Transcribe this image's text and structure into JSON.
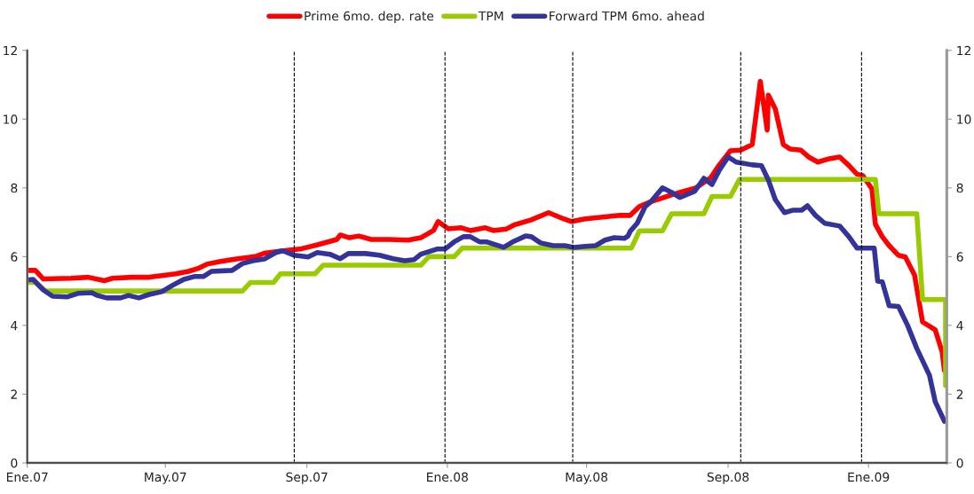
{
  "chart_data": {
    "type": "line",
    "legend": "top",
    "grid": false,
    "line_style": "solid",
    "marker": "none",
    "xlim": [
      "2007-01-01",
      "2009-03-10"
    ],
    "xticks": [
      {
        "value": "2007-01",
        "label": "Ene.07"
      },
      {
        "value": "2007-05",
        "label": "May.07"
      },
      {
        "value": "2007-09",
        "label": "Sep.07"
      },
      {
        "value": "2008-01",
        "label": "Ene.08"
      },
      {
        "value": "2008-05",
        "label": "May.08"
      },
      {
        "value": "2008-09",
        "label": "Sep.08"
      },
      {
        "value": "2009-01",
        "label": "Ene.09"
      }
    ],
    "ylim": [
      0,
      12
    ],
    "yticks": [
      0,
      2,
      4,
      6,
      8,
      10,
      12
    ],
    "y2lim": [
      0,
      12
    ],
    "y2ticks": [
      0,
      2,
      4,
      6,
      8,
      10,
      12
    ],
    "ref_lines": [
      {
        "axis": "x",
        "value": "2007-08-21",
        "color": "#000000",
        "line_style": "dashed"
      },
      {
        "axis": "x",
        "value": "2007-12-30",
        "color": "#000000",
        "line_style": "dashed"
      },
      {
        "axis": "x",
        "value": "2008-04-19",
        "color": "#000000",
        "line_style": "dashed"
      },
      {
        "axis": "x",
        "value": "2008-09-12",
        "color": "#000000",
        "line_style": "dashed"
      },
      {
        "axis": "x",
        "value": "2008-12-26",
        "color": "#000000",
        "line_style": "dashed"
      }
    ],
    "series": [
      {
        "name": "Prime 6mo. dep. rate",
        "color": "#ff0000",
        "x": [
          "2007-01-01",
          "2007-01-08",
          "2007-01-15",
          "2007-02-08",
          "2007-02-23",
          "2007-03-09",
          "2007-03-16",
          "2007-04-02",
          "2007-04-17",
          "2007-04-28",
          "2007-05-10",
          "2007-05-21",
          "2007-05-29",
          "2007-06-06",
          "2007-06-18",
          "2007-07-03",
          "2007-07-18",
          "2007-07-26",
          "2007-08-11",
          "2007-08-26",
          "2007-09-11",
          "2007-09-27",
          "2007-09-30",
          "2007-10-08",
          "2007-10-16",
          "2007-10-27",
          "2007-11-12",
          "2007-11-28",
          "2007-12-09",
          "2007-12-20",
          "2007-12-24",
          "2008-01-02",
          "2008-01-13",
          "2008-01-21",
          "2008-02-03",
          "2008-02-10",
          "2008-02-21",
          "2008-02-28",
          "2008-03-14",
          "2008-03-29",
          "2008-04-11",
          "2008-04-18",
          "2008-04-30",
          "2008-05-15",
          "2008-05-30",
          "2008-06-08",
          "2008-06-16",
          "2008-06-26",
          "2008-07-09",
          "2008-07-21",
          "2008-08-04",
          "2008-08-17",
          "2008-08-24",
          "2008-09-03",
          "2008-09-12",
          "2008-09-22",
          "2008-09-29",
          "2008-10-05",
          "2008-10-06",
          "2008-10-12",
          "2008-10-19",
          "2008-10-25",
          "2008-11-03",
          "2008-11-10",
          "2008-11-18",
          "2008-11-28",
          "2008-12-07",
          "2008-12-15",
          "2008-12-22",
          "2008-12-27",
          "2009-01-04",
          "2009-01-07",
          "2009-01-13",
          "2009-01-19",
          "2009-01-27",
          "2009-02-02",
          "2009-02-10",
          "2009-02-17",
          "2009-02-28",
          "2009-03-06",
          "2009-03-08"
        ],
        "values": [
          5.6,
          5.6,
          5.35,
          5.37,
          5.4,
          5.3,
          5.37,
          5.4,
          5.4,
          5.45,
          5.5,
          5.57,
          5.65,
          5.78,
          5.86,
          5.94,
          6.0,
          6.1,
          6.17,
          6.22,
          6.35,
          6.5,
          6.63,
          6.55,
          6.6,
          6.5,
          6.5,
          6.48,
          6.55,
          6.76,
          7.02,
          6.81,
          6.84,
          6.76,
          6.84,
          6.76,
          6.8,
          6.92,
          7.07,
          7.28,
          7.1,
          7.02,
          7.1,
          7.15,
          7.2,
          7.2,
          7.46,
          7.6,
          7.74,
          7.87,
          8.0,
          8.3,
          8.65,
          9.08,
          9.1,
          9.26,
          11.1,
          9.68,
          10.7,
          10.3,
          9.26,
          9.13,
          9.1,
          8.9,
          8.75,
          8.85,
          8.9,
          8.65,
          8.4,
          8.36,
          7.97,
          6.94,
          6.58,
          6.32,
          6.04,
          5.99,
          5.47,
          4.1,
          3.87,
          3.23,
          2.68
        ]
      },
      {
        "name": "TPM",
        "color": "#99cc00",
        "x": [
          "2007-01-01",
          "2007-01-08",
          "2007-01-17",
          "2007-07-07",
          "2007-07-14",
          "2007-08-03",
          "2007-08-09",
          "2007-09-08",
          "2007-09-15",
          "2007-12-09",
          "2007-12-16",
          "2008-01-07",
          "2008-01-14",
          "2008-06-09",
          "2008-06-16",
          "2008-07-06",
          "2008-07-14",
          "2008-08-11",
          "2008-08-18",
          "2008-09-03",
          "2008-09-11",
          "2009-01-07",
          "2009-01-10",
          "2009-02-12",
          "2009-02-17",
          "2009-03-09",
          "2009-03-09"
        ],
        "values": [
          5.25,
          5.25,
          5.0,
          5.0,
          5.25,
          5.25,
          5.5,
          5.5,
          5.75,
          5.75,
          6.0,
          6.0,
          6.25,
          6.25,
          6.75,
          6.75,
          7.25,
          7.25,
          7.75,
          7.75,
          8.25,
          8.25,
          7.25,
          7.25,
          4.75,
          4.75,
          2.25
        ]
      },
      {
        "name": "Forward TPM 6mo. ahead",
        "color": "#333399",
        "x": [
          "2007-01-01",
          "2007-01-06",
          "2007-01-15",
          "2007-01-23",
          "2007-02-05",
          "2007-02-14",
          "2007-02-26",
          "2007-03-03",
          "2007-03-11",
          "2007-03-23",
          "2007-03-30",
          "2007-04-08",
          "2007-04-17",
          "2007-04-28",
          "2007-05-07",
          "2007-05-17",
          "2007-05-26",
          "2007-06-03",
          "2007-06-10",
          "2007-06-28",
          "2007-07-07",
          "2007-07-16",
          "2007-07-26",
          "2007-08-05",
          "2007-08-11",
          "2007-08-21",
          "2007-09-02",
          "2007-09-10",
          "2007-09-21",
          "2007-09-30",
          "2007-10-07",
          "2007-10-22",
          "2007-11-03",
          "2007-11-15",
          "2007-11-25",
          "2007-12-03",
          "2007-12-09",
          "2007-12-23",
          "2007-12-30",
          "2008-01-07",
          "2008-01-15",
          "2008-01-21",
          "2008-01-29",
          "2008-02-04",
          "2008-02-19",
          "2008-02-28",
          "2008-03-09",
          "2008-03-14",
          "2008-03-22",
          "2008-04-02",
          "2008-04-12",
          "2008-04-20",
          "2008-04-30",
          "2008-05-09",
          "2008-05-17",
          "2008-05-25",
          "2008-06-03",
          "2008-06-06",
          "2008-06-08",
          "2008-06-14",
          "2008-06-21",
          "2008-06-26",
          "2008-07-06",
          "2008-07-14",
          "2008-07-21",
          "2008-08-03",
          "2008-08-11",
          "2008-08-18",
          "2008-08-24",
          "2008-09-01",
          "2008-09-08",
          "2008-09-22",
          "2008-09-30",
          "2008-10-06",
          "2008-10-12",
          "2008-10-20",
          "2008-10-27",
          "2008-11-04",
          "2008-11-09",
          "2008-11-16",
          "2008-11-24",
          "2008-12-07",
          "2008-12-15",
          "2008-12-22",
          "2009-01-06",
          "2009-01-09",
          "2009-01-13",
          "2009-01-19",
          "2009-01-27",
          "2009-02-04",
          "2009-02-12",
          "2009-02-23",
          "2009-02-28",
          "2009-03-08"
        ],
        "values": [
          5.32,
          5.34,
          5.03,
          4.85,
          4.83,
          4.93,
          4.95,
          4.87,
          4.8,
          4.8,
          4.87,
          4.8,
          4.9,
          4.98,
          5.16,
          5.34,
          5.42,
          5.42,
          5.57,
          5.6,
          5.8,
          5.88,
          5.93,
          6.12,
          6.17,
          6.04,
          5.99,
          6.12,
          6.07,
          5.94,
          6.09,
          6.09,
          6.04,
          5.94,
          5.88,
          5.91,
          6.07,
          6.22,
          6.22,
          6.43,
          6.58,
          6.58,
          6.43,
          6.43,
          6.27,
          6.45,
          6.6,
          6.58,
          6.4,
          6.32,
          6.32,
          6.27,
          6.3,
          6.32,
          6.48,
          6.55,
          6.53,
          6.6,
          6.74,
          6.97,
          7.46,
          7.6,
          8.0,
          7.87,
          7.72,
          7.9,
          8.28,
          8.1,
          8.49,
          8.9,
          8.75,
          8.67,
          8.65,
          8.23,
          7.66,
          7.28,
          7.35,
          7.35,
          7.48,
          7.2,
          6.97,
          6.89,
          6.58,
          6.25,
          6.25,
          5.29,
          5.27,
          4.57,
          4.55,
          4.0,
          3.33,
          2.55,
          1.78,
          1.21
        ]
      }
    ]
  }
}
